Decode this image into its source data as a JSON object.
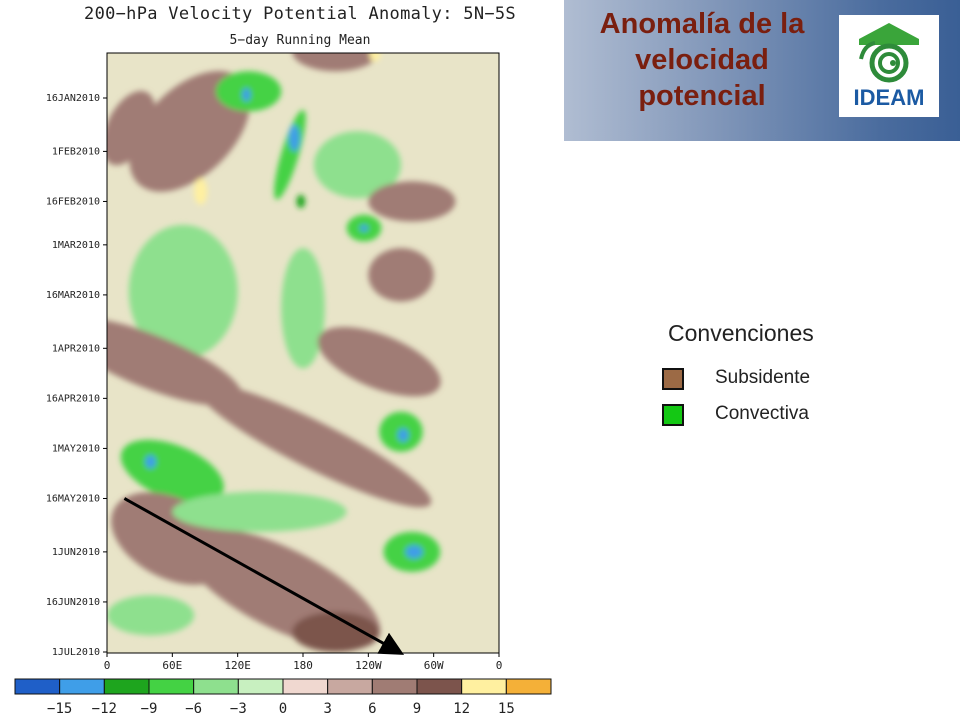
{
  "header": {
    "title_lines": [
      "Anomalía de la",
      "velocidad",
      "potencial"
    ],
    "logo_text": "IDEAM"
  },
  "legend": {
    "title": "Convenciones",
    "items": [
      {
        "label": "Subsidente",
        "color": "#9c6a45"
      },
      {
        "label": "Convectiva",
        "color": "#14c814"
      }
    ]
  },
  "chart_data": {
    "type": "heatmap",
    "title": "200−hPa Velocity Potential Anomaly: 5N−5S",
    "subtitle": "5−day Running Mean",
    "xlabel": "",
    "ylabel": "",
    "x_ticks": [
      "0",
      "60E",
      "120E",
      "180",
      "120W",
      "60W",
      "0"
    ],
    "y_ticks": [
      "16JAN2010",
      "1FEB2010",
      "16FEB2010",
      "1MAR2010",
      "16MAR2010",
      "1APR2010",
      "16APR2010",
      "1MAY2010",
      "16MAY2010",
      "1JUN2010",
      "16JUN2010",
      "1JUL2010"
    ],
    "colorbar": {
      "ticks": [
        "−15",
        "−12",
        "−9",
        "−6",
        "−3",
        "0",
        "3",
        "6",
        "9",
        "12",
        "15"
      ],
      "colors": [
        "#1f5fc8",
        "#3f9ee8",
        "#1ea51e",
        "#44d244",
        "#8ee08e",
        "#c8f0c0",
        "#f0d8d0",
        "#c8a8a0",
        "#a07c74",
        "#7c544c",
        "#fff0a0",
        "#f4b038"
      ]
    },
    "arrow": {
      "from": {
        "lon": 16,
        "date": "16MAY2010"
      },
      "to": {
        "lon": 268,
        "date": "1JUL2010"
      }
    },
    "features": [
      {
        "lon": 76,
        "date": "26JAN2010",
        "value": 8,
        "ext_lon": 40,
        "ext_days": 22,
        "slant": 1.0
      },
      {
        "lon": 86,
        "date": "13FEB2010",
        "value": 12,
        "ext_lon": 6,
        "ext_days": 4,
        "slant": 0
      },
      {
        "lon": 20,
        "date": "25JAN2010",
        "value": 7,
        "ext_lon": 20,
        "ext_days": 12,
        "slant": 0.5
      },
      {
        "lon": 210,
        "date": "2JAN2010",
        "value": 8,
        "ext_lon": 40,
        "ext_days": 6,
        "slant": 0
      },
      {
        "lon": 246,
        "date": "3JAN2010",
        "value": 12,
        "ext_lon": 5,
        "ext_days": 2,
        "slant": 0
      },
      {
        "lon": 130,
        "date": "14JAN2010",
        "value": -9,
        "ext_lon": 30,
        "ext_days": 6,
        "slant": 0
      },
      {
        "lon": 128,
        "date": "15JAN2010",
        "value": -13,
        "ext_lon": 4,
        "ext_days": 2,
        "slant": 0
      },
      {
        "lon": 168,
        "date": "2FEB2010",
        "value": -9,
        "ext_lon": 8,
        "ext_days": 14,
        "slant": 0.3
      },
      {
        "lon": 172,
        "date": "28JAN2010",
        "value": -13,
        "ext_lon": 5,
        "ext_days": 4,
        "slant": 0
      },
      {
        "lon": 178,
        "date": "16FEB2010",
        "value": -12,
        "ext_lon": 4,
        "ext_days": 2,
        "slant": 0
      },
      {
        "lon": 230,
        "date": "5FEB2010",
        "value": -6,
        "ext_lon": 40,
        "ext_days": 10,
        "slant": 0
      },
      {
        "lon": 236,
        "date": "24FEB2010",
        "value": -9,
        "ext_lon": 16,
        "ext_days": 4,
        "slant": 0
      },
      {
        "lon": 236,
        "date": "24FEB2010",
        "value": -13,
        "ext_lon": 4,
        "ext_days": 1,
        "slant": 0
      },
      {
        "lon": 280,
        "date": "16FEB2010",
        "value": 8,
        "ext_lon": 40,
        "ext_days": 6,
        "slant": 0
      },
      {
        "lon": 270,
        "date": "10MAR2010",
        "value": 8,
        "ext_lon": 30,
        "ext_days": 8,
        "slant": 0
      },
      {
        "lon": 180,
        "date": "20MAR2010",
        "value": -6,
        "ext_lon": 20,
        "ext_days": 18,
        "slant": 0
      },
      {
        "lon": 70,
        "date": "15MAR2010",
        "value": -6,
        "ext_lon": 50,
        "ext_days": 20,
        "slant": 0
      },
      {
        "lon": 40,
        "date": "5APR2010",
        "value": 7,
        "ext_lon": 90,
        "ext_days": 8,
        "slant": 0.4
      },
      {
        "lon": 250,
        "date": "5APR2010",
        "value": 7,
        "ext_lon": 60,
        "ext_days": 8,
        "slant": 0.4
      },
      {
        "lon": 270,
        "date": "26APR2010",
        "value": -9,
        "ext_lon": 20,
        "ext_days": 6,
        "slant": 0
      },
      {
        "lon": 272,
        "date": "27APR2010",
        "value": -13,
        "ext_lon": 5,
        "ext_days": 2,
        "slant": 0
      },
      {
        "lon": 190,
        "date": "30APR2010",
        "value": 8,
        "ext_lon": 120,
        "ext_days": 7,
        "slant": 0.5
      },
      {
        "lon": 60,
        "date": "8MAY2010",
        "value": -9,
        "ext_lon": 50,
        "ext_days": 8,
        "slant": 0.4
      },
      {
        "lon": 40,
        "date": "5MAY2010",
        "value": -13,
        "ext_lon": 5,
        "ext_days": 2,
        "slant": 0
      },
      {
        "lon": 60,
        "date": "28MAY2010",
        "value": 7,
        "ext_lon": 60,
        "ext_days": 12,
        "slant": 0.5
      },
      {
        "lon": 160,
        "date": "12JUN2010",
        "value": 7,
        "ext_lon": 100,
        "ext_days": 12,
        "slant": 0.5
      },
      {
        "lon": 140,
        "date": "20MAY2010",
        "value": -6,
        "ext_lon": 80,
        "ext_days": 6,
        "slant": 0
      },
      {
        "lon": 280,
        "date": "1JUN2010",
        "value": -9,
        "ext_lon": 26,
        "ext_days": 6,
        "slant": 0
      },
      {
        "lon": 282,
        "date": "1JUN2010",
        "value": -13,
        "ext_lon": 8,
        "ext_days": 2,
        "slant": 0
      },
      {
        "lon": 210,
        "date": "25JUN2010",
        "value": 9,
        "ext_lon": 40,
        "ext_days": 6,
        "slant": 0
      },
      {
        "lon": 40,
        "date": "20JUN2010",
        "value": -6,
        "ext_lon": 40,
        "ext_days": 6,
        "slant": 0
      }
    ]
  }
}
